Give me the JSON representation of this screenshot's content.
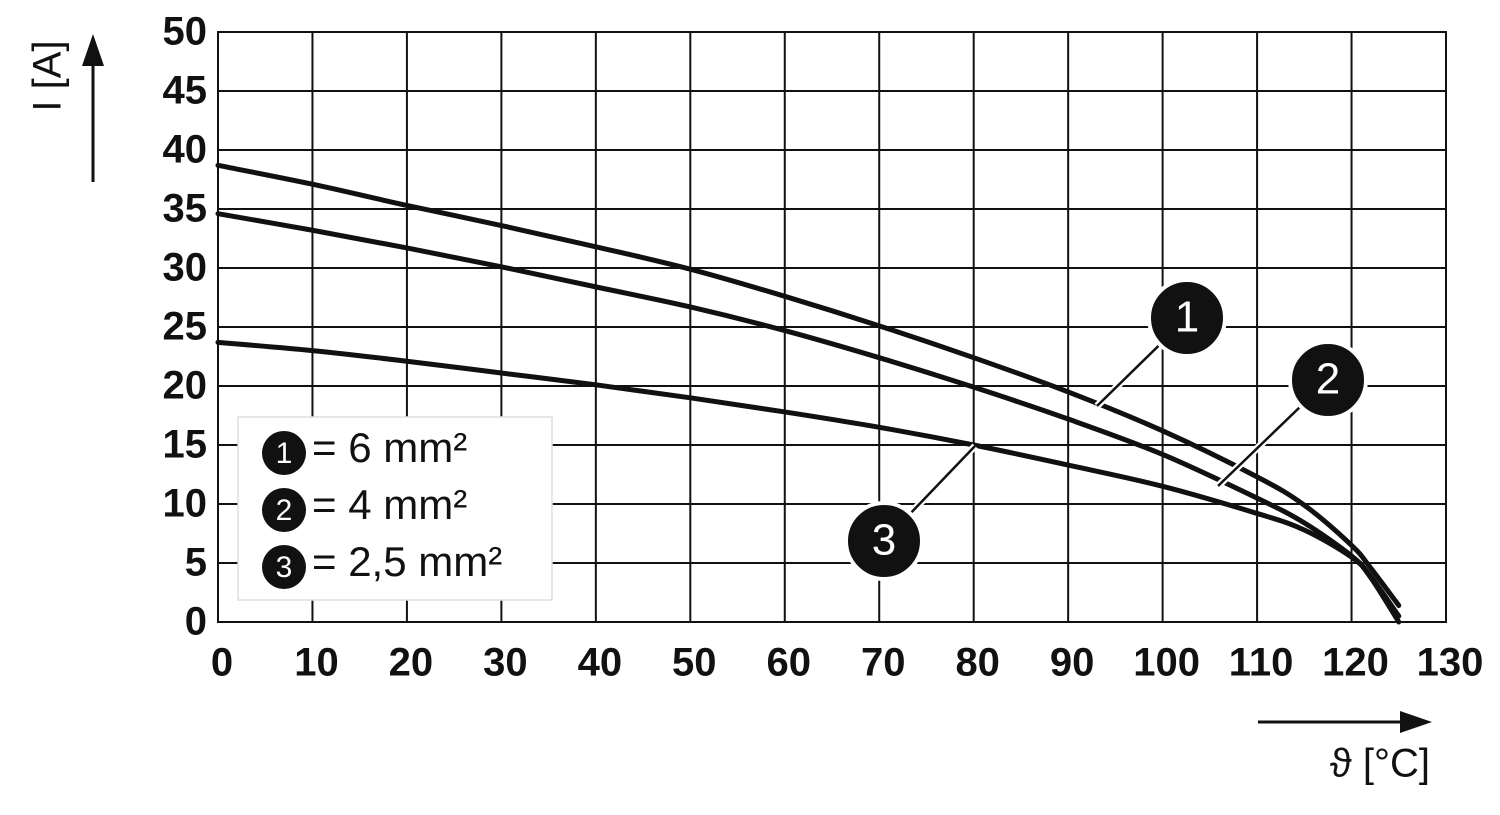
{
  "chart_data": {
    "type": "line",
    "ylabel": "I [A]",
    "xlabel": "ϑ [°C]",
    "x": [
      0,
      10,
      20,
      30,
      40,
      50,
      60,
      70,
      80,
      90,
      100,
      110,
      115,
      120,
      122,
      125
    ],
    "series": [
      {
        "name": "= 6 mm²",
        "marker": "1",
        "color": "#111111",
        "values": [
          38.7,
          37.1,
          35.3,
          33.6,
          31.8,
          29.9,
          27.6,
          25.1,
          22.4,
          19.5,
          16.2,
          12.3,
          9.9,
          6.5,
          4.6,
          1.4
        ]
      },
      {
        "name": "= 4 mm²",
        "marker": "2",
        "color": "#111111",
        "values": [
          34.6,
          33.2,
          31.7,
          30.1,
          28.4,
          26.7,
          24.7,
          22.4,
          19.9,
          17.2,
          14.2,
          10.5,
          8.4,
          5.6,
          3.9,
          0.5
        ]
      },
      {
        "name": "= 2,5 mm²",
        "marker": "3",
        "color": "#111111",
        "values": [
          23.7,
          23.0,
          22.1,
          21.1,
          20.1,
          19.0,
          17.8,
          16.5,
          15.0,
          13.3,
          11.5,
          9.2,
          7.8,
          5.5,
          3.8,
          0
        ]
      }
    ],
    "xlim": [
      0,
      130
    ],
    "ylim": [
      0,
      50
    ],
    "xticks": [
      0,
      10,
      20,
      30,
      40,
      50,
      60,
      70,
      80,
      90,
      100,
      110,
      120,
      130
    ],
    "yticks": [
      0,
      5,
      10,
      15,
      20,
      25,
      30,
      35,
      40,
      45,
      50
    ],
    "grid": true
  }
}
